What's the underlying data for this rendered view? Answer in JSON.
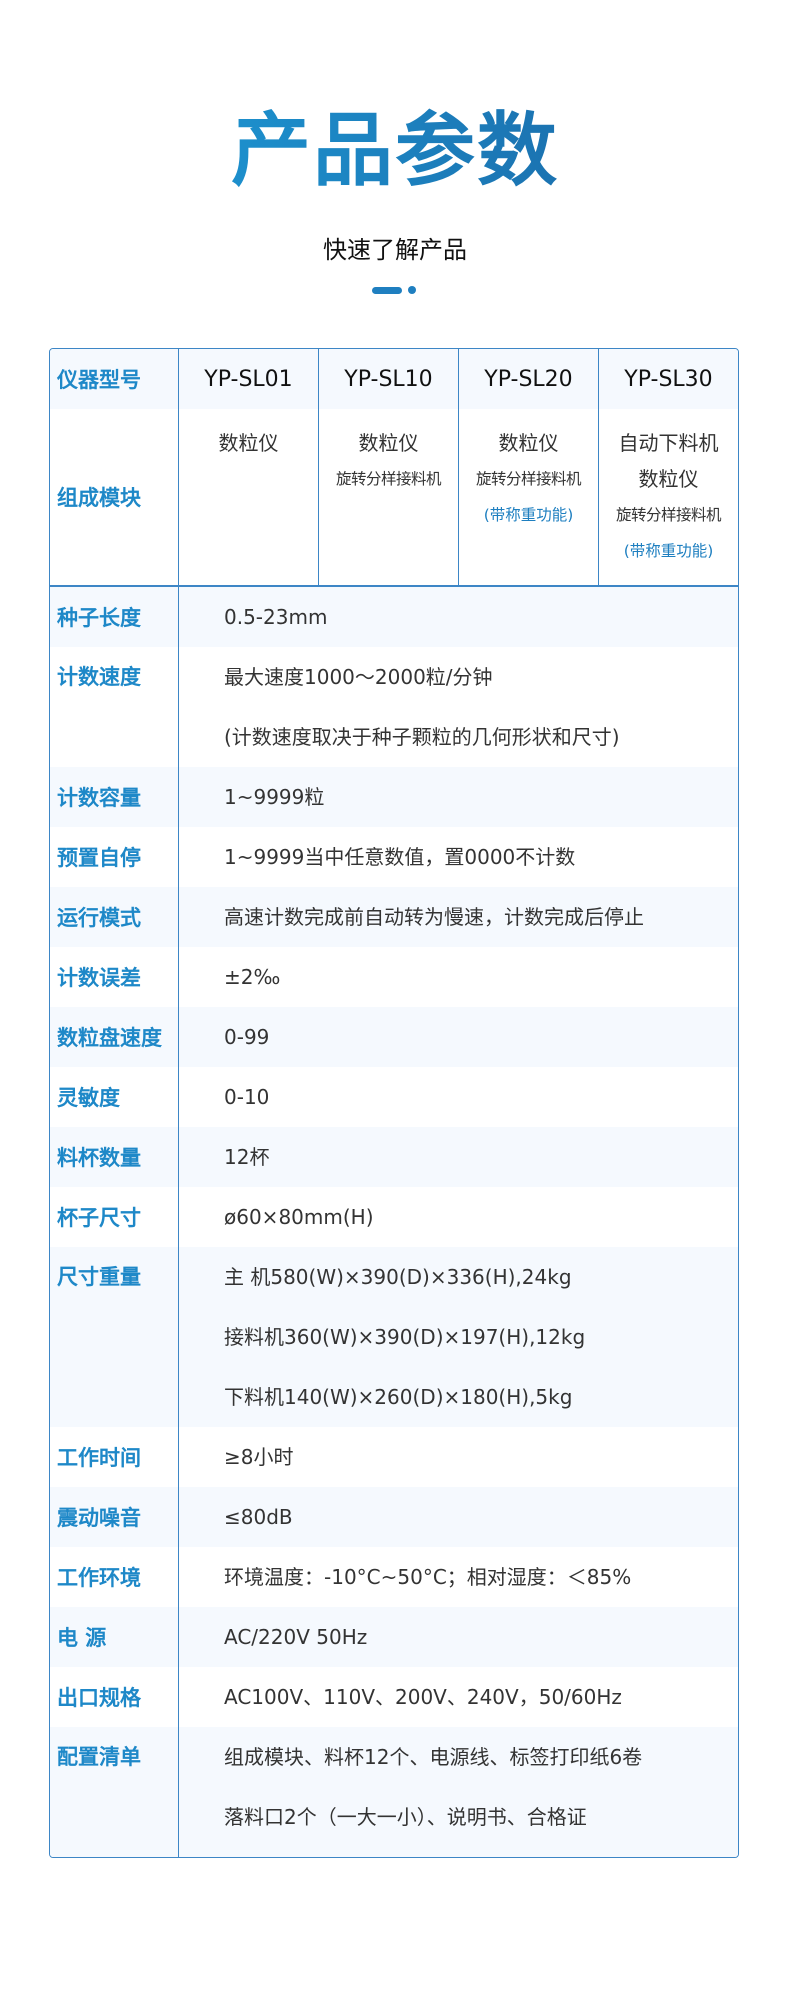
{
  "header": {
    "title": "产品参数",
    "subtitle": "快速了解产品",
    "accent": "#1e88c8"
  },
  "table": {
    "model_label": "仪器型号",
    "models": [
      "YP-SL01",
      "YP-SL10",
      "YP-SL20",
      "YP-SL30"
    ],
    "composition_label": "组成模块",
    "composition": [
      [
        {
          "t": "数粒仪",
          "k": "big"
        }
      ],
      [
        {
          "t": "数粒仪",
          "k": "big"
        },
        {
          "t": "旋转分样接料机",
          "k": "small"
        }
      ],
      [
        {
          "t": "数粒仪",
          "k": "big"
        },
        {
          "t": "旋转分样接料机",
          "k": "small"
        },
        {
          "t": "(带称重功能)",
          "k": "note"
        }
      ],
      [
        {
          "t": "自动下料机",
          "k": "big"
        },
        {
          "t": "数粒仪",
          "k": "big"
        },
        {
          "t": "旋转分样接料机",
          "k": "small"
        },
        {
          "t": "(带称重功能)",
          "k": "note"
        }
      ]
    ],
    "rows": [
      {
        "label": "种子长度",
        "values": [
          "0.5-23mm"
        ]
      },
      {
        "label": "计数速度",
        "values": [
          "最大速度1000〜2000粒/分钟",
          "(计数速度取决于种子颗粒的几何形状和尺寸)"
        ]
      },
      {
        "label": "计数容量",
        "values": [
          "1~9999粒"
        ]
      },
      {
        "label": "预置自停",
        "values": [
          "1~9999当中任意数值，置0000不计数"
        ]
      },
      {
        "label": "运行模式",
        "values": [
          "高速计数完成前自动转为慢速，计数完成后停止"
        ]
      },
      {
        "label": "计数误差",
        "values": [
          "±2‰"
        ]
      },
      {
        "label": "数粒盘速度",
        "values": [
          "0-99"
        ]
      },
      {
        "label": "灵敏度",
        "values": [
          "0-10"
        ]
      },
      {
        "label": "料杯数量",
        "values": [
          "12杯"
        ]
      },
      {
        "label": "杯子尺寸",
        "values": [
          "ø60×80mm(H)"
        ]
      },
      {
        "label": "尺寸重量",
        "values": [
          "主 机580(W)×390(D)×336(H),24kg",
          "接料机360(W)×390(D)×197(H),12kg",
          "下料机140(W)×260(D)×180(H),5kg"
        ]
      },
      {
        "label": "工作时间",
        "values": [
          "≥8小时"
        ]
      },
      {
        "label": "震动噪音",
        "values": [
          "≤80dB"
        ]
      },
      {
        "label": "工作环境",
        "values": [
          "环境温度：-10°C~50°C；相对湿度：＜85%"
        ]
      },
      {
        "label": "电 源",
        "values": [
          "AC/220V  50Hz"
        ]
      },
      {
        "label": "出口规格",
        "values": [
          "AC100V、110V、200V、240V，50/60Hz"
        ]
      },
      {
        "label": "配置清单",
        "values": [
          "组成模块、料杯12个、电源线、标签打印纸6卷",
          "落料口2个（一大一小）、说明书、合格证"
        ]
      }
    ]
  }
}
